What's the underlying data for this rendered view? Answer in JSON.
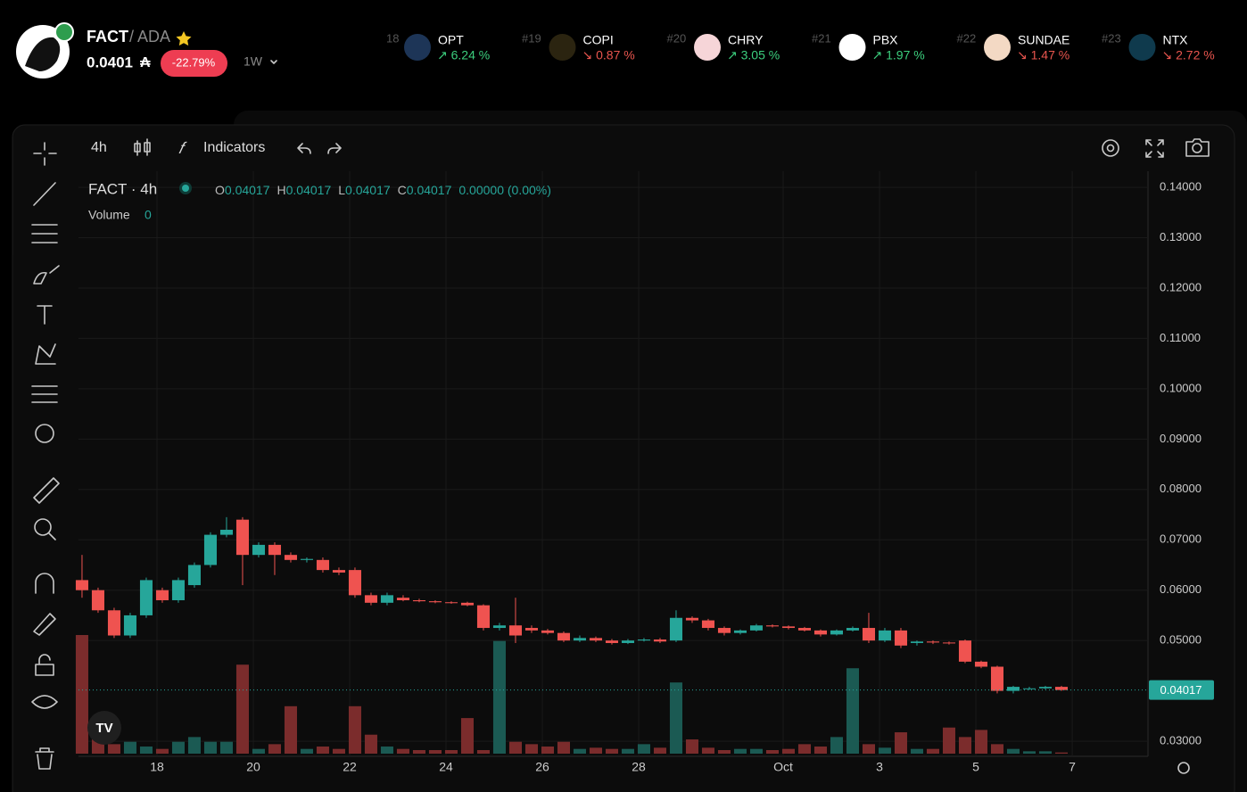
{
  "header": {
    "symbol": "FACT",
    "quote": "/ ADA",
    "price": "0.0401",
    "currency": "₳",
    "change": "-22.79%",
    "interval": "1W"
  },
  "tickers": [
    {
      "rank": "18",
      "symbol": "OPT",
      "change": "↗ 6.24 %",
      "color": "#3ccf7e"
    },
    {
      "rank": "#19",
      "symbol": "COPI",
      "change": "↘ 0.87 %",
      "color": "#e8554e"
    },
    {
      "rank": "#20",
      "symbol": "CHRY",
      "change": "↗ 3.05 %",
      "color": "#3ccf7e"
    },
    {
      "rank": "#21",
      "symbol": "PBX",
      "change": "↗ 1.97 %",
      "color": "#3ccf7e"
    },
    {
      "rank": "#22",
      "symbol": "SUNDAE",
      "change": "↘ 1.47 %",
      "color": "#e8554e"
    },
    {
      "rank": "#23",
      "symbol": "NTX",
      "change": "↘ 2.72 %",
      "color": "#e8554e"
    }
  ],
  "toolbar": {
    "interval": "4h",
    "indicators": "Indicators"
  },
  "chart_data": {
    "type": "candlestick",
    "title": "FACT · 4h",
    "legend": {
      "o": "O",
      "open": "0.04017",
      "h": "H",
      "high": "0.04017",
      "l": "L",
      "low": "0.04017",
      "c": "C",
      "close": "0.04017",
      "change": "0.00000 (0.00%)"
    },
    "volume_label": "Volume",
    "volume_value": "0",
    "up_color": "#26a69a",
    "down_color": "#ef5350",
    "open": [
      0.062,
      0.06,
      0.056,
      0.051,
      0.055,
      0.06,
      0.058,
      0.061,
      0.065,
      0.071,
      0.074,
      0.067,
      0.069,
      0.067,
      0.066,
      0.066,
      0.064,
      0.064,
      0.059,
      0.0575,
      0.0585,
      0.058,
      0.0578,
      0.0576,
      0.0575,
      0.057,
      0.0525,
      0.053,
      0.0525,
      0.052,
      0.0515,
      0.05,
      0.0505,
      0.05,
      0.0495,
      0.05,
      0.0502,
      0.05,
      0.0545,
      0.054,
      0.0525,
      0.0515,
      0.052,
      0.053,
      0.0528,
      0.0525,
      0.052,
      0.0512,
      0.052,
      0.0525,
      0.05,
      0.052,
      0.0495,
      0.0498,
      0.0496,
      0.05,
      0.0458,
      0.0448,
      0.04,
      0.0405,
      0.0405,
      0.0408
    ],
    "high": [
      0.067,
      0.0605,
      0.0565,
      0.0555,
      0.0625,
      0.0605,
      0.0625,
      0.0655,
      0.0715,
      0.0745,
      0.0745,
      0.0695,
      0.0695,
      0.0675,
      0.0665,
      0.0665,
      0.0645,
      0.0645,
      0.0595,
      0.0595,
      0.059,
      0.0583,
      0.058,
      0.0578,
      0.0577,
      0.0572,
      0.0535,
      0.0585,
      0.053,
      0.0523,
      0.0518,
      0.051,
      0.0508,
      0.0503,
      0.0503,
      0.0505,
      0.0505,
      0.056,
      0.0548,
      0.0543,
      0.0528,
      0.0522,
      0.0533,
      0.0532,
      0.053,
      0.0527,
      0.0522,
      0.0522,
      0.0528,
      0.0555,
      0.0525,
      0.0525,
      0.05,
      0.05,
      0.0498,
      0.0502,
      0.046,
      0.045,
      0.041,
      0.0408,
      0.041,
      0.041
    ],
    "low": [
      0.0585,
      0.0555,
      0.0505,
      0.0505,
      0.0545,
      0.0575,
      0.0575,
      0.0605,
      0.0645,
      0.0705,
      0.061,
      0.0665,
      0.063,
      0.0655,
      0.0655,
      0.0635,
      0.063,
      0.0585,
      0.057,
      0.057,
      0.0578,
      0.0576,
      0.0574,
      0.0573,
      0.0568,
      0.052,
      0.052,
      0.0495,
      0.0515,
      0.0512,
      0.0497,
      0.0497,
      0.0497,
      0.0492,
      0.0493,
      0.0498,
      0.0495,
      0.0497,
      0.0535,
      0.052,
      0.051,
      0.0512,
      0.0518,
      0.0526,
      0.0522,
      0.0518,
      0.0508,
      0.051,
      0.0518,
      0.0495,
      0.0497,
      0.0485,
      0.049,
      0.0493,
      0.0492,
      0.0455,
      0.0445,
      0.0395,
      0.0395,
      0.0402,
      0.0403,
      0.04
    ],
    "close": [
      0.06,
      0.056,
      0.051,
      0.055,
      0.062,
      0.058,
      0.062,
      0.065,
      0.071,
      0.072,
      0.067,
      0.069,
      0.067,
      0.066,
      0.0662,
      0.064,
      0.0635,
      0.059,
      0.0575,
      0.059,
      0.058,
      0.0578,
      0.0576,
      0.0575,
      0.057,
      0.0525,
      0.053,
      0.051,
      0.052,
      0.0515,
      0.05,
      0.0505,
      0.05,
      0.0495,
      0.05,
      0.0502,
      0.0498,
      0.0545,
      0.054,
      0.0525,
      0.0515,
      0.052,
      0.053,
      0.0528,
      0.0525,
      0.052,
      0.0512,
      0.052,
      0.0525,
      0.05,
      0.052,
      0.049,
      0.0498,
      0.0496,
      0.0495,
      0.0458,
      0.0448,
      0.04,
      0.0408,
      0.0405,
      0.0408,
      0.04017
    ],
    "volume": [
      100,
      12,
      8,
      10,
      6,
      4,
      10,
      14,
      10,
      10,
      75,
      4,
      8,
      40,
      4,
      6,
      4,
      40,
      16,
      6,
      4,
      3,
      3,
      3,
      30,
      3,
      95,
      10,
      8,
      6,
      10,
      4,
      5,
      4,
      4,
      8,
      5,
      60,
      12,
      5,
      3,
      4,
      4,
      3,
      4,
      8,
      6,
      14,
      72,
      8,
      5,
      18,
      4,
      4,
      22,
      14,
      20,
      8,
      4,
      2,
      2,
      1
    ],
    "last_price": {
      "value": 0.04017,
      "label": "0.04017"
    },
    "ylim": [
      0.027,
      0.1432
    ],
    "yticks": [
      {
        "value": 0.03,
        "label": "0.03000"
      },
      {
        "value": 0.05,
        "label": "0.05000"
      },
      {
        "value": 0.06,
        "label": "0.06000"
      },
      {
        "value": 0.07,
        "label": "0.07000"
      },
      {
        "value": 0.08,
        "label": "0.08000"
      },
      {
        "value": 0.09,
        "label": "0.09000"
      },
      {
        "value": 0.1,
        "label": "0.10000"
      },
      {
        "value": 0.11,
        "label": "0.11000"
      },
      {
        "value": 0.12,
        "label": "0.12000"
      },
      {
        "value": 0.13,
        "label": "0.13000"
      },
      {
        "value": 0.14,
        "label": "0.14000"
      }
    ],
    "xlim": [
      -0.22,
      66.39
    ],
    "xticks": [
      {
        "value": 4.67,
        "label": "18"
      },
      {
        "value": 10.67,
        "label": "20"
      },
      {
        "value": 16.67,
        "label": "22"
      },
      {
        "value": 22.67,
        "label": "24"
      },
      {
        "value": 28.67,
        "label": "26"
      },
      {
        "value": 34.67,
        "label": "28"
      },
      {
        "value": 43.67,
        "label": "Oct"
      },
      {
        "value": 49.67,
        "label": "3"
      },
      {
        "value": 55.67,
        "label": "5"
      },
      {
        "value": 61.67,
        "label": "7"
      }
    ],
    "grid": true
  }
}
